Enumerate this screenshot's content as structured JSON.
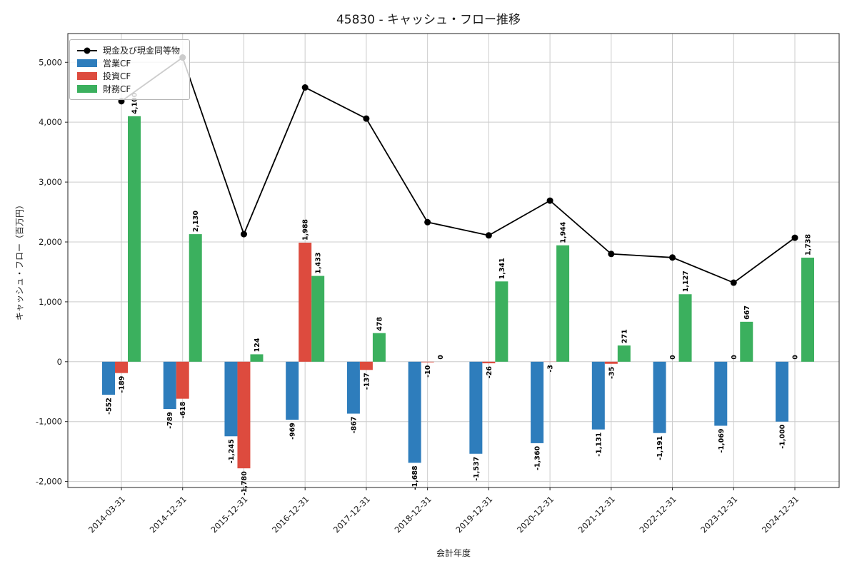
{
  "chart_data": {
    "type": "bar",
    "title": "45830 - キャッシュ・フロー推移",
    "xlabel": "会計年度",
    "ylabel": "キャッシュ・フロー（百万円）",
    "categories": [
      "2014-03-31",
      "2014-12-31",
      "2015-12-31",
      "2016-12-31",
      "2017-12-31",
      "2018-12-31",
      "2019-12-31",
      "2020-12-31",
      "2021-12-31",
      "2022-12-31",
      "2023-12-31",
      "2024-12-31"
    ],
    "bar_series": [
      {
        "name": "営業CF",
        "color": "#2e7dbc",
        "values": [
          -552,
          -789,
          -1245,
          -969,
          -867,
          -1688,
          -1537,
          -1360,
          -1131,
          -1191,
          -1069,
          -1000
        ]
      },
      {
        "name": "投資CF",
        "color": "#dd4b3e",
        "values": [
          -189,
          -618,
          -1780,
          1988,
          -137,
          -10,
          -26,
          -3,
          -35,
          0,
          0,
          0
        ]
      },
      {
        "name": "財務CF",
        "color": "#3bb05e",
        "values": [
          4100,
          2130,
          124,
          1433,
          478,
          0,
          1341,
          1944,
          271,
          1127,
          667,
          1738
        ]
      }
    ],
    "line_series": {
      "name": "現金及び現金同等物",
      "color": "#000000",
      "values": [
        4350,
        5080,
        2130,
        4580,
        4060,
        2330,
        2110,
        2690,
        1800,
        1740,
        1320,
        2070
      ]
    },
    "yticks": [
      -2000,
      -1000,
      0,
      1000,
      2000,
      3000,
      4000,
      5000
    ],
    "ylim": [
      -2100,
      5480
    ],
    "grid": true,
    "legend_position": "upper left",
    "style": {
      "grid_color": "#cccccc",
      "axis_color": "#222222",
      "background": "#ffffff"
    }
  }
}
